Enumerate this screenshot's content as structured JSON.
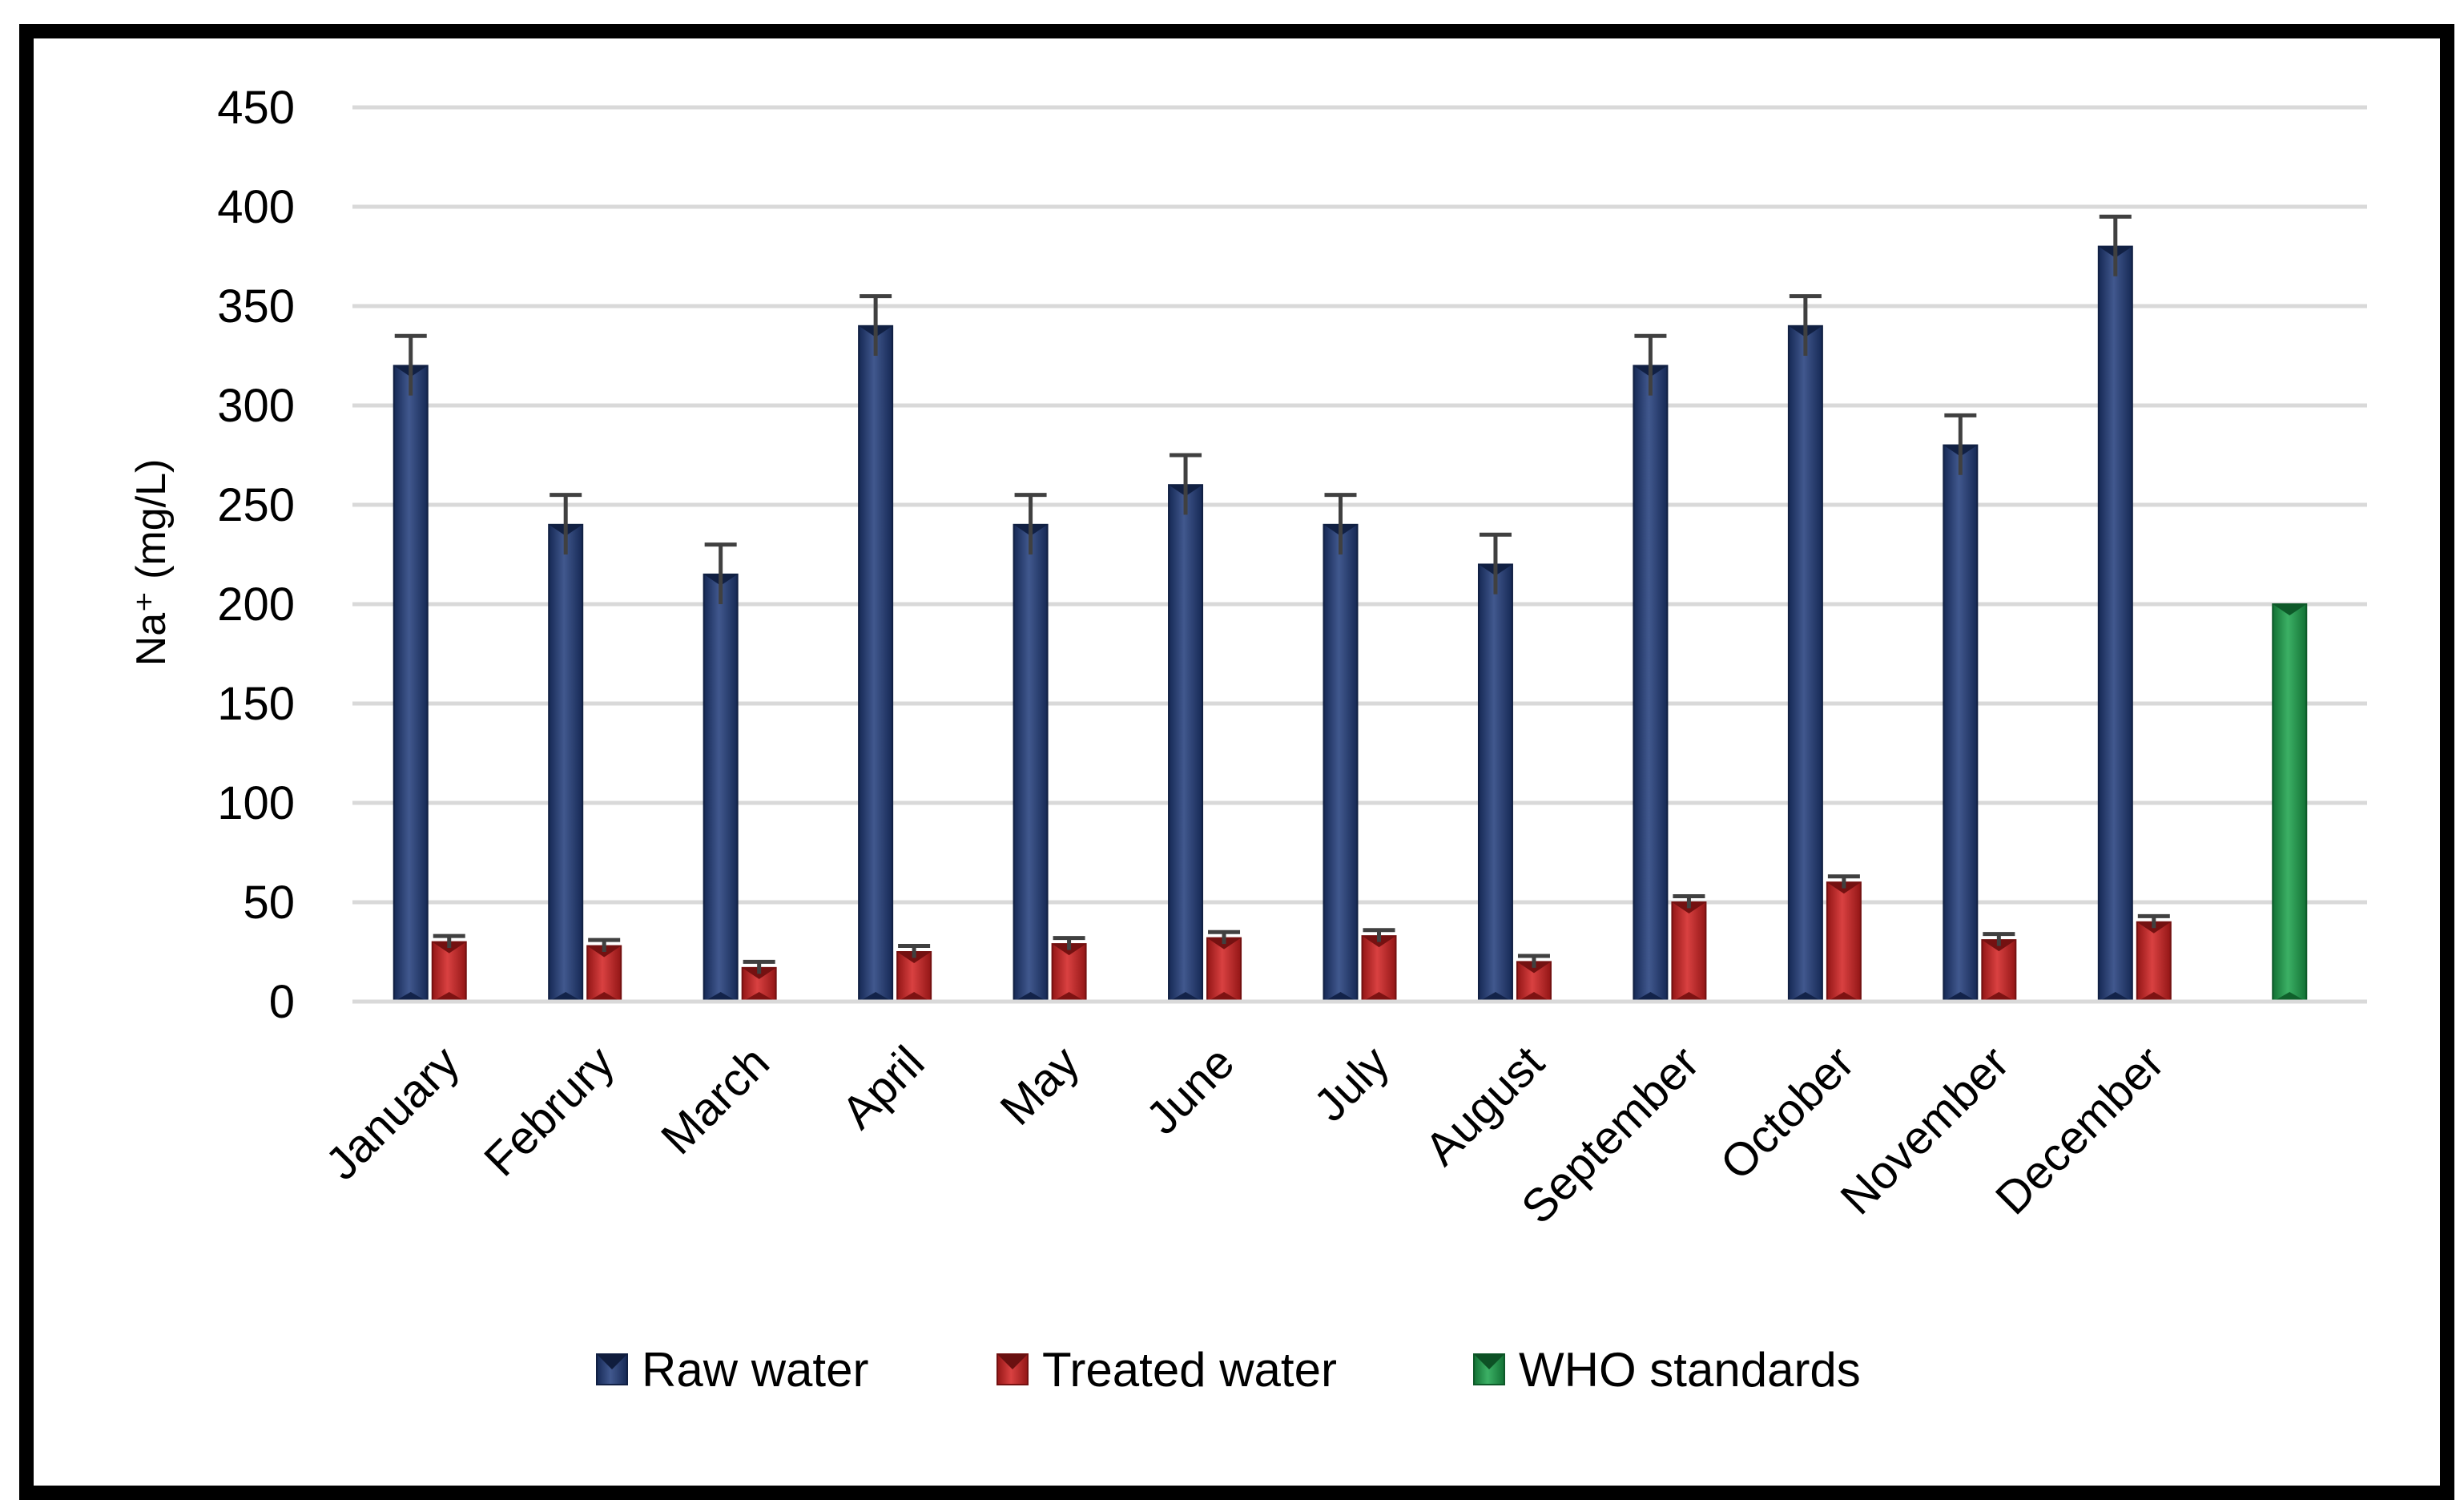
{
  "chart_data": {
    "type": "bar",
    "title": "",
    "xlabel": "",
    "ylabel": "Na⁺ (mg/L)",
    "ylim": [
      0,
      450
    ],
    "yticks": [
      0,
      50,
      100,
      150,
      200,
      250,
      300,
      350,
      400,
      450
    ],
    "grid": true,
    "legend_position": "bottom",
    "categories": [
      "January",
      "Februry",
      "March",
      "April",
      "May",
      "June",
      "July",
      "August",
      "September",
      "October",
      "November",
      "December",
      ""
    ],
    "series": [
      {
        "name": "Raw water",
        "color": "#1f3a7a",
        "values": [
          320,
          240,
          215,
          340,
          240,
          260,
          240,
          220,
          320,
          340,
          280,
          380,
          null
        ],
        "errors": [
          15,
          15,
          15,
          15,
          15,
          15,
          15,
          15,
          15,
          15,
          15,
          15,
          null
        ]
      },
      {
        "name": "Treated water",
        "color": "#d21f1f",
        "values": [
          30,
          28,
          17,
          25,
          29,
          32,
          33,
          20,
          50,
          60,
          31,
          40,
          null
        ],
        "errors": [
          3,
          3,
          3,
          3,
          3,
          3,
          3,
          3,
          3,
          3,
          3,
          3,
          null
        ]
      },
      {
        "name": "WHO standards",
        "color": "#1aa24a",
        "values": [
          null,
          null,
          null,
          null,
          null,
          null,
          null,
          null,
          null,
          null,
          null,
          null,
          200
        ],
        "errors": [
          null,
          null,
          null,
          null,
          null,
          null,
          null,
          null,
          null,
          null,
          null,
          null,
          null
        ]
      }
    ]
  }
}
